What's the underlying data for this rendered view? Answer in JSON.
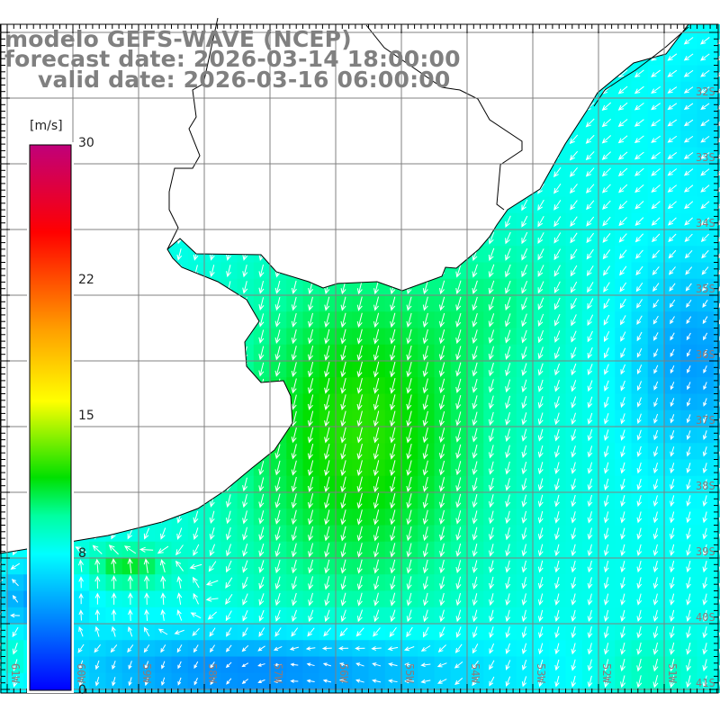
{
  "title": {
    "model": "modelo GEFS-WAVE (NCEP)",
    "forecast": "forecast date: 2026-03-14 18:00:00",
    "valid": "valid date: 2026-03-16 06:00:00"
  },
  "colorbar": {
    "unit": "[m/s]",
    "ticks": [
      "30",
      "22",
      "15",
      "8",
      "0"
    ],
    "stops": [
      {
        "frac": 0.0,
        "color": "#0000ff"
      },
      {
        "frac": 0.25,
        "color": "#00ffff"
      },
      {
        "frac": 0.32,
        "color": "#00ffa0"
      },
      {
        "frac": 0.39,
        "color": "#00e000"
      },
      {
        "frac": 0.53,
        "color": "#ffff00"
      },
      {
        "frac": 0.66,
        "color": "#ffa000"
      },
      {
        "frac": 0.84,
        "color": "#ff0000"
      },
      {
        "frac": 1.0,
        "color": "#c0007a"
      }
    ]
  },
  "axes": {
    "lon_labels": [
      "61W",
      "60W",
      "59W",
      "58W",
      "57W",
      "56W",
      "55W",
      "54W",
      "53W",
      "52W",
      "51W"
    ],
    "lat_labels": [
      "32S",
      "33S",
      "34S",
      "35S",
      "36S",
      "37S",
      "38S",
      "39S",
      "40S",
      "41S"
    ]
  },
  "colors": {
    "grid": "#808080",
    "coast": "#000000",
    "land": "#ffffff",
    "arrow": "#ffffff"
  }
}
